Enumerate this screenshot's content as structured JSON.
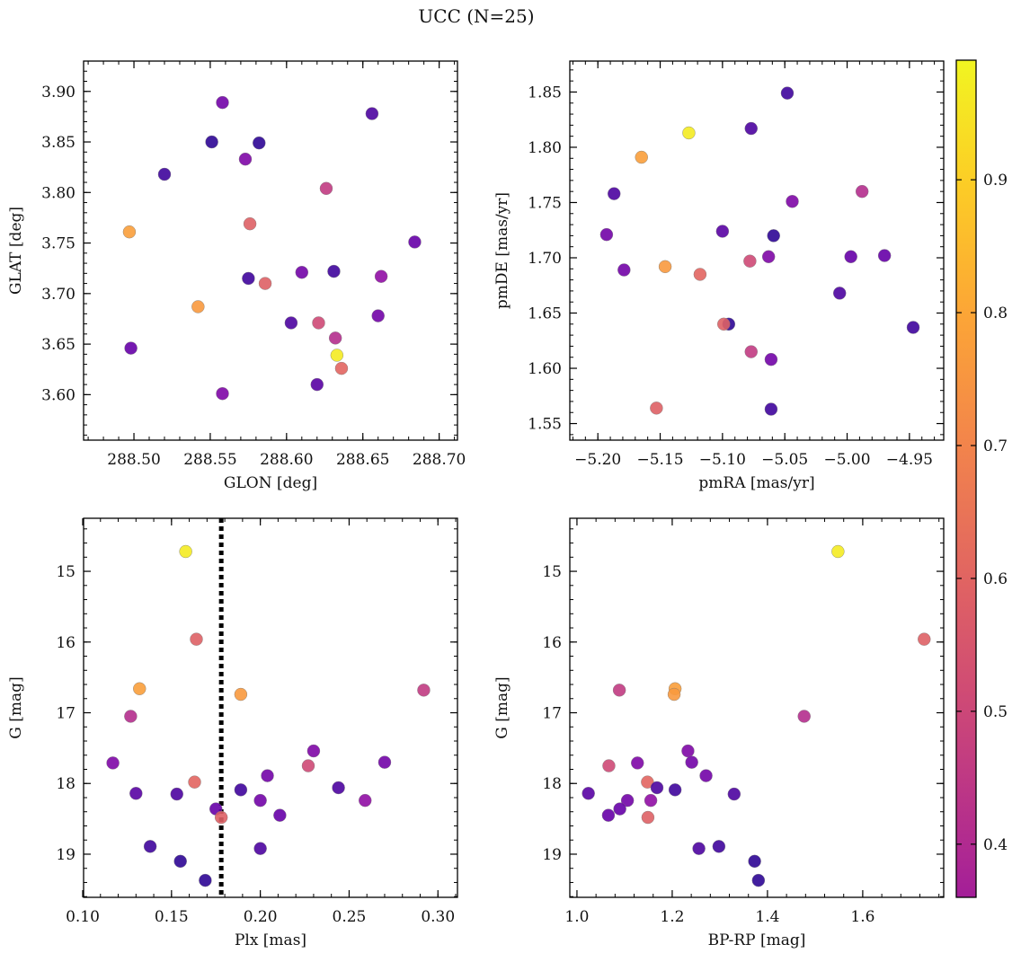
{
  "figure": {
    "title": "UCC (N=25)"
  },
  "colorbar": {
    "colormap": "plasma",
    "range": [
      0.36,
      0.99
    ],
    "ticks": [
      0.4,
      0.5,
      0.6,
      0.7,
      0.8,
      0.9
    ],
    "tick_labels": [
      "0.4",
      "0.5",
      "0.6",
      "0.7",
      "0.8",
      "0.9"
    ]
  },
  "chart_data": [
    {
      "type": "scatter",
      "xlabel": "GLON [deg]",
      "ylabel": "GLAT [deg]",
      "xlim": [
        288.467,
        288.712
      ],
      "ylim": [
        3.555,
        3.93
      ],
      "xticks": [
        288.5,
        288.55,
        288.6,
        288.65,
        288.7
      ],
      "xtick_labels": [
        "288.50",
        "288.55",
        "288.60",
        "288.65",
        "288.70"
      ],
      "yticks": [
        3.6,
        3.65,
        3.7,
        3.75,
        3.8,
        3.85,
        3.9
      ],
      "ytick_labels": [
        "3.60",
        "3.65",
        "3.70",
        "3.75",
        "3.80",
        "3.85",
        "3.90"
      ],
      "invert_y": false,
      "points": [
        {
          "x": 288.497,
          "y": 3.761,
          "c": 0.85
        },
        {
          "x": 288.498,
          "y": 3.646,
          "c": 0.48
        },
        {
          "x": 288.52,
          "y": 3.818,
          "c": 0.42
        },
        {
          "x": 288.542,
          "y": 3.687,
          "c": 0.84
        },
        {
          "x": 288.551,
          "y": 3.85,
          "c": 0.4
        },
        {
          "x": 288.558,
          "y": 3.889,
          "c": 0.5
        },
        {
          "x": 288.558,
          "y": 3.601,
          "c": 0.52
        },
        {
          "x": 288.573,
          "y": 3.833,
          "c": 0.52
        },
        {
          "x": 288.575,
          "y": 3.715,
          "c": 0.42
        },
        {
          "x": 288.576,
          "y": 3.769,
          "c": 0.73
        },
        {
          "x": 288.582,
          "y": 3.849,
          "c": 0.4
        },
        {
          "x": 288.586,
          "y": 3.71,
          "c": 0.73
        },
        {
          "x": 288.603,
          "y": 3.671,
          "c": 0.44
        },
        {
          "x": 288.61,
          "y": 3.721,
          "c": 0.5
        },
        {
          "x": 288.62,
          "y": 3.61,
          "c": 0.46
        },
        {
          "x": 288.621,
          "y": 3.671,
          "c": 0.68
        },
        {
          "x": 288.626,
          "y": 3.804,
          "c": 0.65
        },
        {
          "x": 288.631,
          "y": 3.722,
          "c": 0.42
        },
        {
          "x": 288.632,
          "y": 3.656,
          "c": 0.62
        },
        {
          "x": 288.633,
          "y": 3.639,
          "c": 0.97
        },
        {
          "x": 288.636,
          "y": 3.626,
          "c": 0.74
        },
        {
          "x": 288.656,
          "y": 3.878,
          "c": 0.44
        },
        {
          "x": 288.66,
          "y": 3.678,
          "c": 0.5
        },
        {
          "x": 288.662,
          "y": 3.717,
          "c": 0.55
        },
        {
          "x": 288.684,
          "y": 3.751,
          "c": 0.48
        }
      ]
    },
    {
      "type": "scatter",
      "xlabel": "pmRA [mas/yr]",
      "ylabel": "pmDE [mas/yr]",
      "xlim": [
        -5.2225,
        -4.9225
      ],
      "ylim": [
        1.535,
        1.878
      ],
      "xticks": [
        -5.2,
        -5.15,
        -5.1,
        -5.05,
        -5.0,
        -4.95
      ],
      "xtick_labels": [
        "−5.20",
        "−5.15",
        "−5.10",
        "−5.05",
        "−5.00",
        "−4.95"
      ],
      "yticks": [
        1.55,
        1.6,
        1.65,
        1.7,
        1.75,
        1.8,
        1.85
      ],
      "ytick_labels": [
        "1.55",
        "1.60",
        "1.65",
        "1.70",
        "1.75",
        "1.80",
        "1.85"
      ],
      "invert_y": false,
      "points": [
        {
          "x": -5.193,
          "y": 1.721,
          "c": 0.5
        },
        {
          "x": -5.187,
          "y": 1.758,
          "c": 0.44
        },
        {
          "x": -5.179,
          "y": 1.689,
          "c": 0.5
        },
        {
          "x": -5.165,
          "y": 1.791,
          "c": 0.85
        },
        {
          "x": -5.153,
          "y": 1.564,
          "c": 0.73
        },
        {
          "x": -5.146,
          "y": 1.692,
          "c": 0.84
        },
        {
          "x": -5.127,
          "y": 1.813,
          "c": 0.97
        },
        {
          "x": -5.118,
          "y": 1.685,
          "c": 0.74
        },
        {
          "x": -5.095,
          "y": 1.64,
          "c": 0.4
        },
        {
          "x": -5.099,
          "y": 1.64,
          "c": 0.73
        },
        {
          "x": -5.1,
          "y": 1.724,
          "c": 0.46
        },
        {
          "x": -5.077,
          "y": 1.817,
          "c": 0.44
        },
        {
          "x": -5.078,
          "y": 1.697,
          "c": 0.68
        },
        {
          "x": -5.077,
          "y": 1.615,
          "c": 0.65
        },
        {
          "x": -5.063,
          "y": 1.701,
          "c": 0.52
        },
        {
          "x": -5.061,
          "y": 1.608,
          "c": 0.5
        },
        {
          "x": -5.061,
          "y": 1.563,
          "c": 0.42
        },
        {
          "x": -5.059,
          "y": 1.72,
          "c": 0.4
        },
        {
          "x": -5.048,
          "y": 1.849,
          "c": 0.42
        },
        {
          "x": -5.044,
          "y": 1.751,
          "c": 0.52
        },
        {
          "x": -5.006,
          "y": 1.668,
          "c": 0.44
        },
        {
          "x": -4.997,
          "y": 1.701,
          "c": 0.48
        },
        {
          "x": -4.988,
          "y": 1.76,
          "c": 0.62
        },
        {
          "x": -4.97,
          "y": 1.702,
          "c": 0.48
        },
        {
          "x": -4.947,
          "y": 1.637,
          "c": 0.42
        }
      ]
    },
    {
      "type": "scatter",
      "xlabel": "Plx [mas]",
      "ylabel": "G [mag]",
      "xlim": [
        0.1005,
        0.311
      ],
      "ylim": [
        14.25,
        19.61
      ],
      "xticks": [
        0.1,
        0.15,
        0.2,
        0.25,
        0.3
      ],
      "xtick_labels": [
        "0.10",
        "0.15",
        "0.20",
        "0.25",
        "0.30"
      ],
      "yticks": [
        15,
        16,
        17,
        18,
        19
      ],
      "ytick_labels": [
        "15",
        "16",
        "17",
        "18",
        "19"
      ],
      "invert_y": true,
      "vline": 0.178,
      "points": [
        {
          "x": 0.158,
          "y": 14.72,
          "c": 0.97
        },
        {
          "x": 0.164,
          "y": 15.96,
          "c": 0.73
        },
        {
          "x": 0.132,
          "y": 16.66,
          "c": 0.85
        },
        {
          "x": 0.189,
          "y": 16.74,
          "c": 0.84
        },
        {
          "x": 0.292,
          "y": 16.68,
          "c": 0.65
        },
        {
          "x": 0.127,
          "y": 17.05,
          "c": 0.62
        },
        {
          "x": 0.117,
          "y": 17.71,
          "c": 0.52
        },
        {
          "x": 0.23,
          "y": 17.54,
          "c": 0.52
        },
        {
          "x": 0.227,
          "y": 17.75,
          "c": 0.68
        },
        {
          "x": 0.27,
          "y": 17.7,
          "c": 0.5
        },
        {
          "x": 0.204,
          "y": 17.89,
          "c": 0.5
        },
        {
          "x": 0.163,
          "y": 17.98,
          "c": 0.74
        },
        {
          "x": 0.13,
          "y": 18.14,
          "c": 0.46
        },
        {
          "x": 0.153,
          "y": 18.15,
          "c": 0.44
        },
        {
          "x": 0.189,
          "y": 18.09,
          "c": 0.42
        },
        {
          "x": 0.244,
          "y": 18.06,
          "c": 0.44
        },
        {
          "x": 0.2,
          "y": 18.24,
          "c": 0.5
        },
        {
          "x": 0.259,
          "y": 18.24,
          "c": 0.55
        },
        {
          "x": 0.175,
          "y": 18.36,
          "c": 0.48
        },
        {
          "x": 0.178,
          "y": 18.48,
          "c": 0.73
        },
        {
          "x": 0.211,
          "y": 18.45,
          "c": 0.48
        },
        {
          "x": 0.138,
          "y": 18.89,
          "c": 0.42
        },
        {
          "x": 0.2,
          "y": 18.92,
          "c": 0.44
        },
        {
          "x": 0.155,
          "y": 19.1,
          "c": 0.4
        },
        {
          "x": 0.169,
          "y": 19.37,
          "c": 0.4
        }
      ]
    },
    {
      "type": "scatter",
      "xlabel": "BP-RP [mag]",
      "ylabel": "G [mag]",
      "xlim": [
        0.985,
        1.77
      ],
      "ylim": [
        14.25,
        19.61
      ],
      "xticks": [
        1.0,
        1.2,
        1.4,
        1.6
      ],
      "xtick_labels": [
        "1.0",
        "1.2",
        "1.4",
        "1.6"
      ],
      "yticks": [
        15,
        16,
        17,
        18,
        19
      ],
      "ytick_labels": [
        "15",
        "16",
        "17",
        "18",
        "19"
      ],
      "invert_y": true,
      "points": [
        {
          "x": 1.548,
          "y": 14.72,
          "c": 0.97
        },
        {
          "x": 1.729,
          "y": 15.96,
          "c": 0.73
        },
        {
          "x": 1.206,
          "y": 16.66,
          "c": 0.85
        },
        {
          "x": 1.204,
          "y": 16.74,
          "c": 0.84
        },
        {
          "x": 1.089,
          "y": 16.68,
          "c": 0.65
        },
        {
          "x": 1.477,
          "y": 17.05,
          "c": 0.62
        },
        {
          "x": 1.127,
          "y": 17.71,
          "c": 0.52
        },
        {
          "x": 1.233,
          "y": 17.54,
          "c": 0.52
        },
        {
          "x": 1.067,
          "y": 17.75,
          "c": 0.68
        },
        {
          "x": 1.241,
          "y": 17.7,
          "c": 0.5
        },
        {
          "x": 1.271,
          "y": 17.89,
          "c": 0.5
        },
        {
          "x": 1.148,
          "y": 17.98,
          "c": 0.74
        },
        {
          "x": 1.024,
          "y": 18.14,
          "c": 0.46
        },
        {
          "x": 1.33,
          "y": 18.15,
          "c": 0.44
        },
        {
          "x": 1.206,
          "y": 18.09,
          "c": 0.42
        },
        {
          "x": 1.168,
          "y": 18.06,
          "c": 0.44
        },
        {
          "x": 1.106,
          "y": 18.24,
          "c": 0.5
        },
        {
          "x": 1.155,
          "y": 18.24,
          "c": 0.55
        },
        {
          "x": 1.09,
          "y": 18.36,
          "c": 0.48
        },
        {
          "x": 1.149,
          "y": 18.48,
          "c": 0.73
        },
        {
          "x": 1.066,
          "y": 18.45,
          "c": 0.48
        },
        {
          "x": 1.298,
          "y": 18.89,
          "c": 0.42
        },
        {
          "x": 1.256,
          "y": 18.92,
          "c": 0.44
        },
        {
          "x": 1.373,
          "y": 19.1,
          "c": 0.4
        },
        {
          "x": 1.381,
          "y": 19.37,
          "c": 0.4
        }
      ]
    }
  ]
}
